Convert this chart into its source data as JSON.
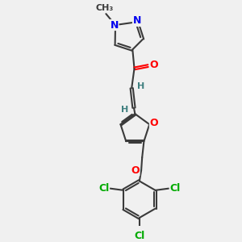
{
  "bg_color": "#f0f0f0",
  "bond_color": "#3a3a3a",
  "N_color": "#0000ee",
  "O_color": "#ff0000",
  "Cl_color": "#00aa00",
  "H_color": "#408080",
  "bond_width": 1.5,
  "dbo": 0.055,
  "font_size": 9,
  "figsize": [
    3.0,
    3.0
  ],
  "dpi": 100,
  "xlim": [
    0,
    10
  ],
  "ylim": [
    0,
    10
  ]
}
